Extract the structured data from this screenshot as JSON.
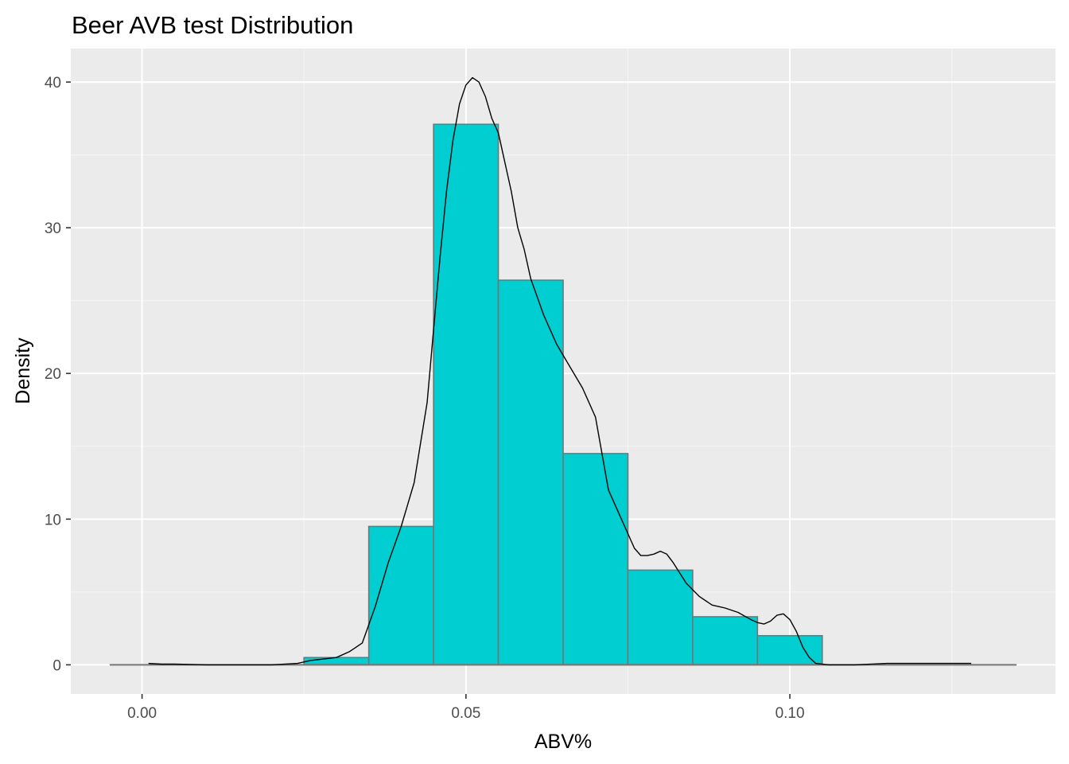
{
  "chart_data": {
    "type": "bar",
    "title": "Beer AVB test Distribution",
    "xlabel": "ABV%",
    "ylabel": "Density",
    "xlim": [
      -0.011,
      0.141
    ],
    "ylim": [
      -2.0,
      42.3
    ],
    "x_ticks": [
      {
        "value": 0.0,
        "label": "0.00"
      },
      {
        "value": 0.05,
        "label": "0.05"
      },
      {
        "value": 0.1,
        "label": "0.10"
      }
    ],
    "y_ticks": [
      {
        "value": 0,
        "label": "0"
      },
      {
        "value": 10,
        "label": "10"
      },
      {
        "value": 20,
        "label": "20"
      },
      {
        "value": 30,
        "label": "30"
      },
      {
        "value": 40,
        "label": "40"
      }
    ],
    "bins": [
      {
        "x0": -0.005,
        "x1": 0.005,
        "density": 0
      },
      {
        "x0": 0.005,
        "x1": 0.015,
        "density": 0
      },
      {
        "x0": 0.015,
        "x1": 0.025,
        "density": 0
      },
      {
        "x0": 0.025,
        "x1": 0.035,
        "density": 0.5
      },
      {
        "x0": 0.035,
        "x1": 0.045,
        "density": 9.5
      },
      {
        "x0": 0.045,
        "x1": 0.055,
        "density": 37.1
      },
      {
        "x0": 0.055,
        "x1": 0.065,
        "density": 26.4
      },
      {
        "x0": 0.065,
        "x1": 0.075,
        "density": 14.5
      },
      {
        "x0": 0.075,
        "x1": 0.085,
        "density": 6.5
      },
      {
        "x0": 0.085,
        "x1": 0.095,
        "density": 3.3
      },
      {
        "x0": 0.095,
        "x1": 0.105,
        "density": 2.0
      },
      {
        "x0": 0.105,
        "x1": 0.115,
        "density": 0
      },
      {
        "x0": 0.115,
        "x1": 0.125,
        "density": 0
      },
      {
        "x0": 0.125,
        "x1": 0.135,
        "density": 0
      }
    ],
    "density_curve": {
      "x": [
        0.001,
        0.003,
        0.005,
        0.01,
        0.015,
        0.02,
        0.024,
        0.026,
        0.028,
        0.03,
        0.032,
        0.034,
        0.036,
        0.038,
        0.04,
        0.042,
        0.044,
        0.045,
        0.046,
        0.047,
        0.048,
        0.049,
        0.05,
        0.051,
        0.052,
        0.053,
        0.054,
        0.055,
        0.056,
        0.057,
        0.058,
        0.059,
        0.06,
        0.062,
        0.064,
        0.066,
        0.068,
        0.07,
        0.072,
        0.074,
        0.076,
        0.077,
        0.078,
        0.079,
        0.08,
        0.081,
        0.082,
        0.084,
        0.086,
        0.088,
        0.09,
        0.092,
        0.094,
        0.095,
        0.096,
        0.097,
        0.098,
        0.099,
        0.1,
        0.101,
        0.102,
        0.103,
        0.104,
        0.106,
        0.11,
        0.115,
        0.12,
        0.125,
        0.128
      ],
      "y": [
        0.1,
        0.05,
        0.05,
        0.0,
        0.0,
        0.0,
        0.1,
        0.3,
        0.4,
        0.5,
        0.9,
        1.5,
        4.0,
        7.0,
        9.5,
        12.5,
        18.0,
        23.0,
        28.0,
        32.5,
        36.0,
        38.5,
        39.8,
        40.3,
        40.0,
        39.0,
        37.5,
        36.5,
        34.5,
        32.5,
        30.0,
        28.5,
        26.5,
        24.0,
        22.0,
        20.5,
        19.0,
        17.0,
        12.0,
        10.0,
        8.0,
        7.5,
        7.5,
        7.6,
        7.8,
        7.6,
        7.0,
        5.6,
        4.7,
        4.1,
        3.9,
        3.6,
        3.1,
        2.9,
        2.8,
        3.0,
        3.4,
        3.5,
        3.1,
        2.3,
        1.2,
        0.5,
        0.1,
        0.0,
        0.0,
        0.1,
        0.1,
        0.1,
        0.1
      ]
    },
    "baseline_range": [
      -0.005,
      0.135
    ],
    "grid": true,
    "colors": {
      "bar_fill": "#00ced1",
      "bar_stroke": "#757575",
      "curve": "#000000",
      "panel_background": "#ebebeb",
      "grid_major": "#ffffff",
      "grid_minor": "#f5f5f5"
    }
  }
}
